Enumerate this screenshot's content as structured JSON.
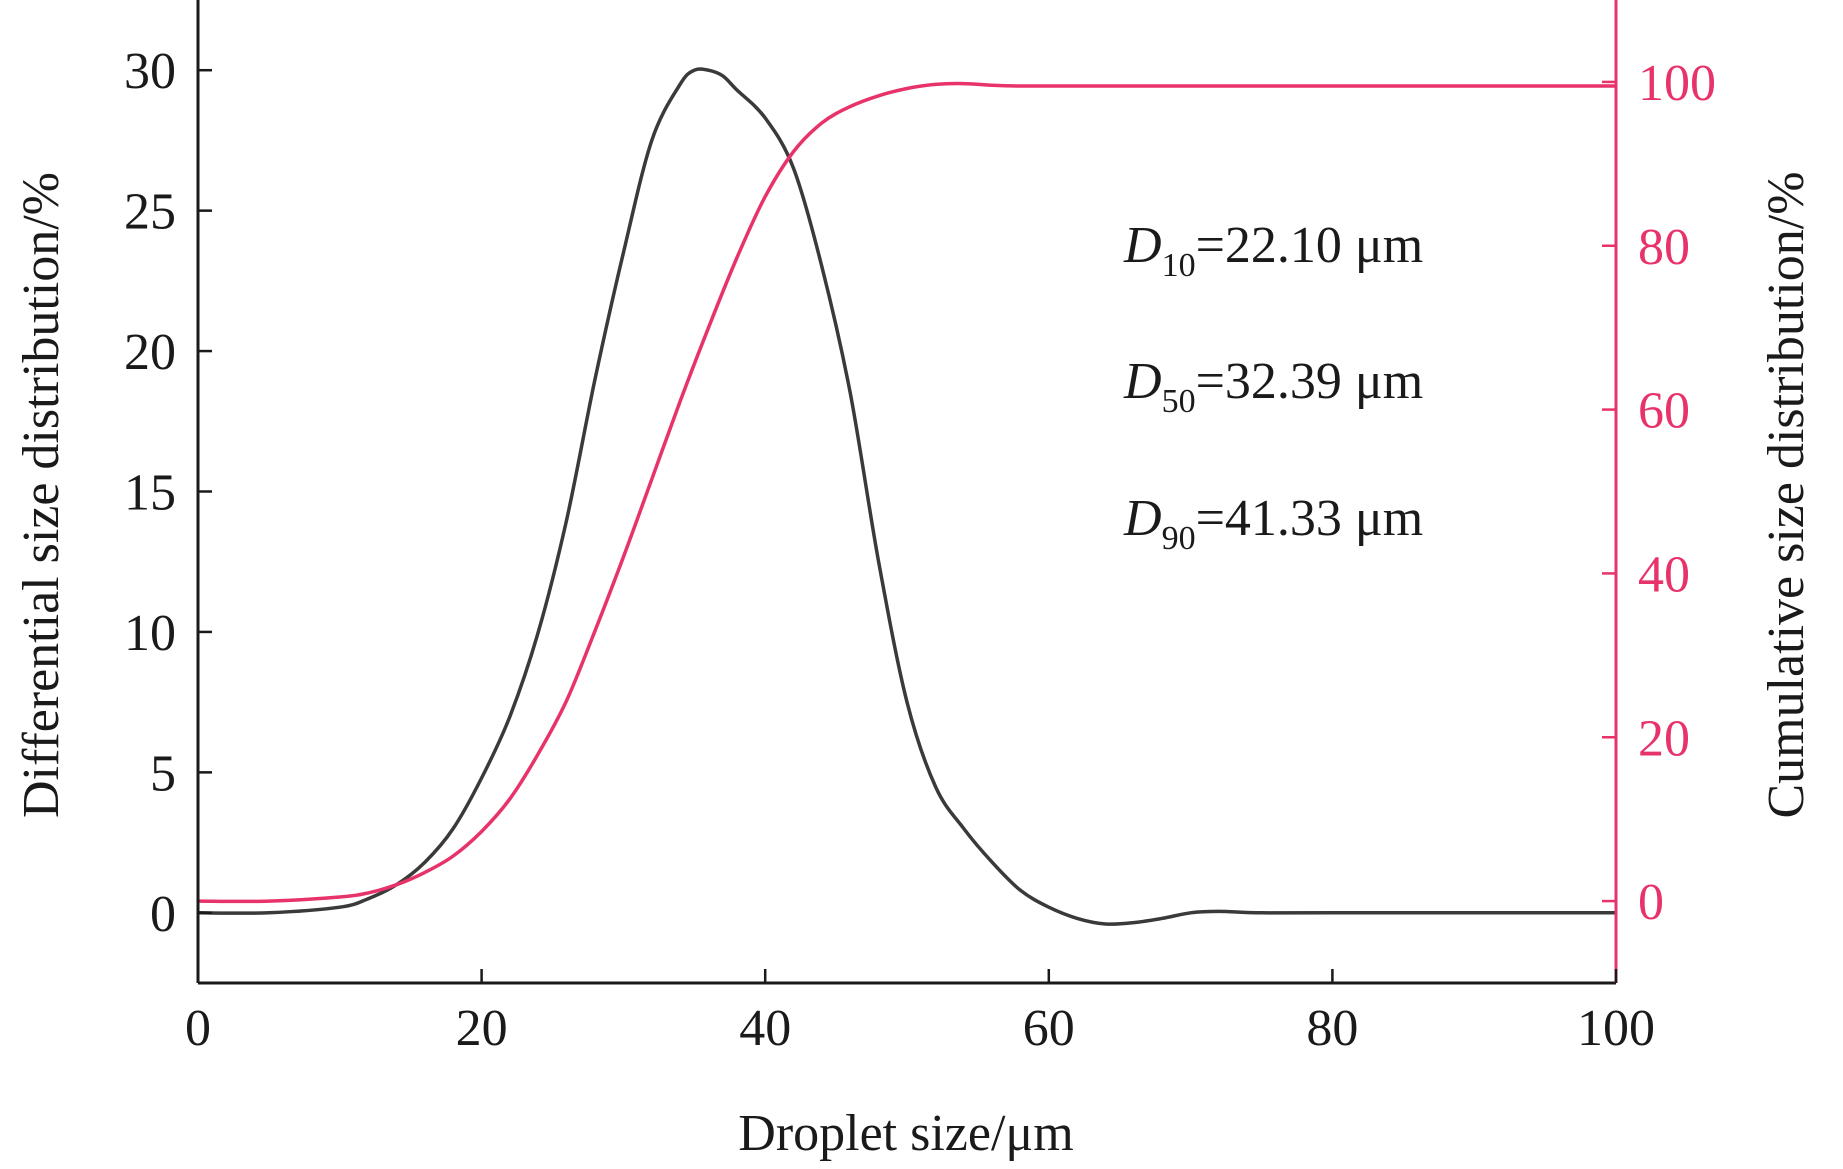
{
  "chart_data": {
    "type": "line",
    "xlabel": "Droplet size/μm",
    "ylabel_left": "Differential size distribution/%",
    "ylabel_right": "Cumulative size distribution/%",
    "xlim": [
      0,
      100
    ],
    "ylim_left": [
      -2.5,
      32.5
    ],
    "ylim_right": [
      -10,
      110
    ],
    "x_ticks": [
      0,
      20,
      40,
      60,
      80,
      100
    ],
    "y_left_ticks": [
      0,
      5,
      10,
      15,
      20,
      25,
      30
    ],
    "y_right_ticks": [
      0,
      20,
      40,
      60,
      80,
      100
    ],
    "grid": false,
    "colors": {
      "differential": "#3a3a3a",
      "cumulative": "#e8336a",
      "right_axis": "#e8336a"
    },
    "annotations": [
      {
        "symbol": "D",
        "sub": "10",
        "text": "=22.10 μm"
      },
      {
        "symbol": "D",
        "sub": "50",
        "text": "=32.39 μm"
      },
      {
        "symbol": "D",
        "sub": "90",
        "text": "=41.33 μm"
      }
    ],
    "series": [
      {
        "axis": "left",
        "x": [
          0,
          5,
          10,
          12,
          14,
          16,
          18,
          20,
          22,
          24,
          26,
          28,
          30,
          32,
          34,
          35,
          36,
          37,
          38,
          40,
          42,
          44,
          46,
          48,
          50,
          52,
          54,
          56,
          58,
          60,
          62,
          64,
          66,
          68,
          70,
          72,
          75,
          80,
          90,
          100
        ],
        "y": [
          0,
          0,
          0.2,
          0.5,
          1,
          1.8,
          3,
          4.8,
          7,
          10,
          14,
          19,
          23.5,
          27.5,
          29.5,
          30,
          30,
          29.8,
          29.3,
          28.3,
          26.5,
          23,
          18.5,
          12.5,
          7.5,
          4.5,
          3,
          1.8,
          0.8,
          0.2,
          -0.2,
          -0.4,
          -0.35,
          -0.2,
          0,
          0.05,
          0,
          0,
          0,
          0
        ]
      },
      {
        "axis": "right",
        "x": [
          0,
          5,
          10,
          12,
          14,
          16,
          18,
          20,
          22,
          24,
          26,
          28,
          30,
          32,
          34,
          36,
          38,
          40,
          42,
          44,
          46,
          48,
          50,
          52,
          54,
          56,
          58,
          60,
          70,
          80,
          90,
          100
        ],
        "y": [
          0,
          0,
          0.5,
          1,
          2,
          3.5,
          5.5,
          8.5,
          12.5,
          18,
          24.5,
          33,
          42,
          51.5,
          61,
          70,
          78.5,
          86,
          91.5,
          95,
          97,
          98.3,
          99.2,
          99.7,
          99.8,
          99.6,
          99.5,
          99.5,
          99.5,
          99.5,
          99.5,
          99.5
        ]
      }
    ]
  }
}
